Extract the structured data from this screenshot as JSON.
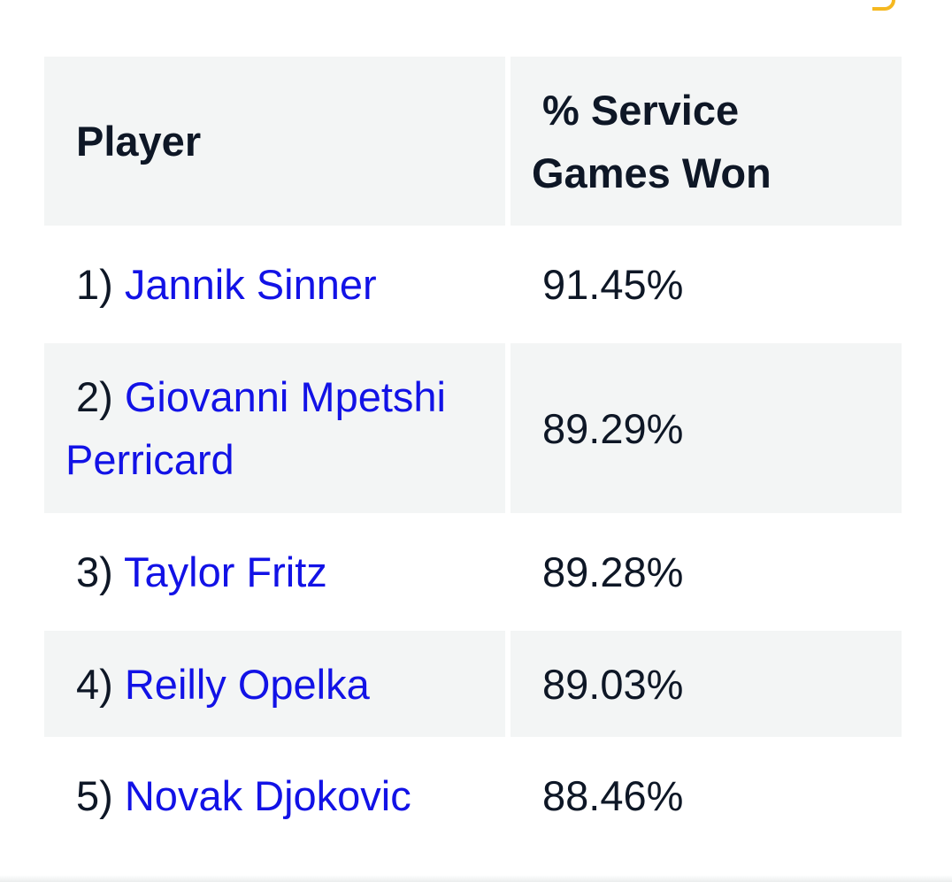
{
  "table": {
    "headers": {
      "player": "Player",
      "stat_line1": "% Service",
      "stat_line2": "Games Won"
    },
    "rows": [
      {
        "rank": "1)",
        "name": "Jannik Sinner",
        "value": "91.45%"
      },
      {
        "rank": "2)",
        "name_line1": "Giovanni Mpetshi",
        "name_line2": "Perricard",
        "value": "89.29%"
      },
      {
        "rank": "3)",
        "name": "Taylor Fritz",
        "value": "89.28%"
      },
      {
        "rank": "4)",
        "name": "Reilly Opelka",
        "value": "89.03%"
      },
      {
        "rank": "5)",
        "name": "Novak Djokovic",
        "value": "88.46%"
      }
    ]
  },
  "colors": {
    "link": "#1212e6",
    "text": "#0e1726",
    "row_shade": "#f3f5f5",
    "accent": "#f5b820"
  }
}
